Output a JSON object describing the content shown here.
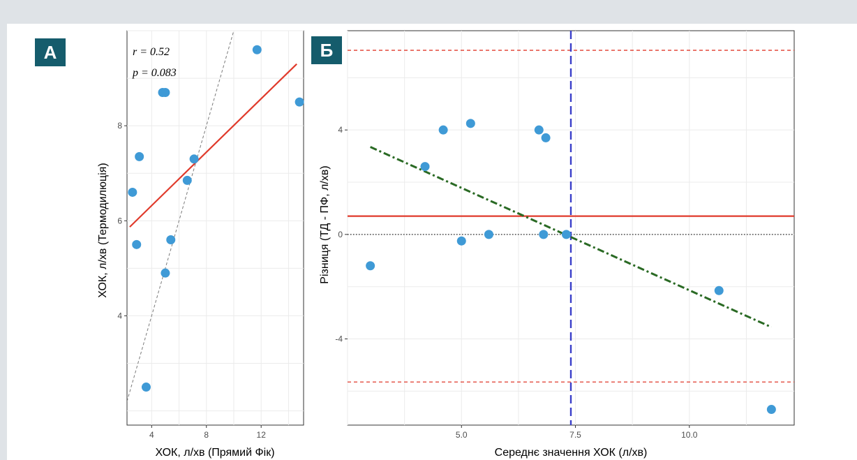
{
  "panels": {
    "a": {
      "badge": "A"
    },
    "b": {
      "badge": "Б"
    }
  },
  "colors": {
    "badge_bg": "#155c6c",
    "point": "#3f9ad6",
    "regression": "#e03a2b",
    "identity": "#7a7a7a",
    "mean_line": "#3a3fc9",
    "trend": "#2a6a24",
    "limits": "#e03a2b"
  },
  "chart_data": [
    {
      "type": "scatter",
      "panel": "A",
      "title": "",
      "xlabel": "ХОК, л/хв (Прямий Фік)",
      "ylabel": "ХОК, л/хв (Термодилюція)",
      "xlim": [
        2.2,
        15.1
      ],
      "ylim": [
        1.7,
        10.0
      ],
      "x_ticks": [
        4,
        8,
        12
      ],
      "x_tick_labels": [
        "4",
        "8",
        "12"
      ],
      "y_ticks": [
        4,
        6,
        8
      ],
      "y_tick_labels": [
        "4",
        "6",
        "8"
      ],
      "annotations": [
        "r = 0.52",
        "p = 0.083"
      ],
      "points": [
        {
          "x": 2.6,
          "y": 6.6
        },
        {
          "x": 2.9,
          "y": 5.5
        },
        {
          "x": 3.1,
          "y": 7.35
        },
        {
          "x": 3.6,
          "y": 2.5
        },
        {
          "x": 4.8,
          "y": 8.7
        },
        {
          "x": 5.0,
          "y": 8.7
        },
        {
          "x": 5.0,
          "y": 4.9
        },
        {
          "x": 5.4,
          "y": 5.6
        },
        {
          "x": 6.6,
          "y": 6.85
        },
        {
          "x": 7.1,
          "y": 7.3
        },
        {
          "x": 11.7,
          "y": 9.6
        },
        {
          "x": 14.8,
          "y": 8.5
        }
      ],
      "regression_line": [
        [
          2.4,
          5.87
        ],
        [
          14.6,
          9.3
        ]
      ],
      "identity_line": [
        [
          2.2,
          2.2
        ],
        [
          10.0,
          10.0
        ]
      ],
      "grid": true
    },
    {
      "type": "scatter",
      "panel": "Б",
      "title": "",
      "xlabel": "Середнє значення ХОК (л/хв)",
      "ylabel": "Різниця (ТД - ПФ, л/хв)",
      "xlim": [
        2.5,
        12.3
      ],
      "ylim": [
        -7.3,
        7.8
      ],
      "x_ticks": [
        5.0,
        7.5,
        10.0
      ],
      "x_tick_labels": [
        "5.0",
        "7.5",
        "10.0"
      ],
      "y_ticks": [
        -4,
        0,
        4
      ],
      "y_tick_labels": [
        "-4",
        "0",
        "4"
      ],
      "points": [
        {
          "x": 3.0,
          "y": -1.2
        },
        {
          "x": 4.2,
          "y": 2.6
        },
        {
          "x": 4.6,
          "y": 4.0
        },
        {
          "x": 5.0,
          "y": -0.25
        },
        {
          "x": 5.2,
          "y": 4.25
        },
        {
          "x": 5.6,
          "y": 0.0
        },
        {
          "x": 6.7,
          "y": 4.0
        },
        {
          "x": 6.8,
          "y": 0.0
        },
        {
          "x": 6.85,
          "y": 3.7
        },
        {
          "x": 7.3,
          "y": 0.0
        },
        {
          "x": 10.65,
          "y": -2.15
        },
        {
          "x": 11.8,
          "y": -6.7
        }
      ],
      "mean_difference": 0.7,
      "upper_limit": 7.05,
      "lower_limit": -5.65,
      "zero_line": 0,
      "mean_x": 7.4,
      "trend_line": [
        [
          3.0,
          3.35
        ],
        [
          11.8,
          -3.55
        ]
      ],
      "grid": true
    }
  ]
}
